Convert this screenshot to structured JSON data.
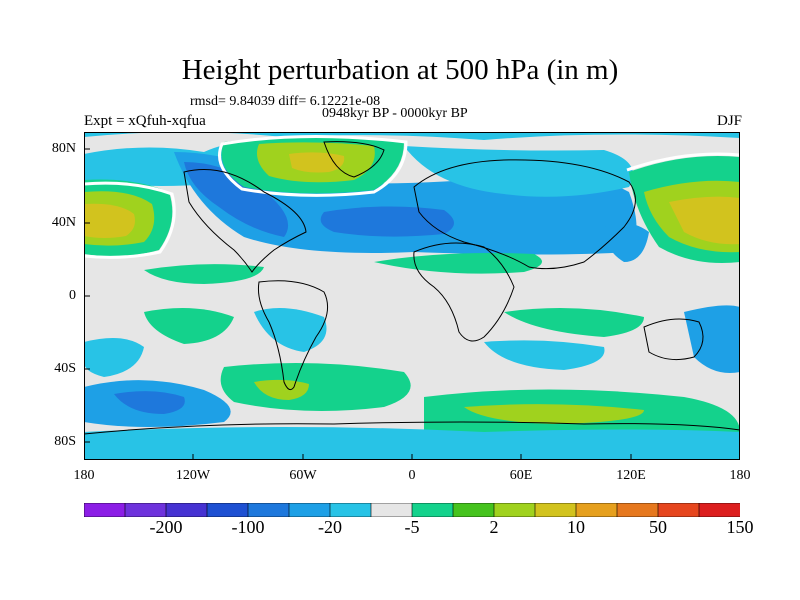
{
  "title": "Height perturbation at 500 hPa (in m)",
  "subtitle_stats": "rmsd= 9.84039 diff= 6.12221e-08",
  "subtitle_period": "0948kyr BP - 0000kyr BP",
  "left_label": "Expt = xQfuh-xqfua",
  "right_label": "DJF",
  "lat_labels": [
    "80N",
    "40N",
    "0",
    "40S",
    "80S"
  ],
  "lon_labels": [
    "180",
    "120W",
    "60W",
    "0",
    "60E",
    "120E",
    "180"
  ],
  "colorbar": {
    "colors": [
      "#8c1ee6",
      "#6e32dc",
      "#4632d2",
      "#1e50d2",
      "#1e78dc",
      "#1ea0e6",
      "#28c3e6",
      "#e6e6e6",
      "#14d28c",
      "#46c31e",
      "#a0d21e",
      "#d2c31e",
      "#e6a01e",
      "#e6781e",
      "#e6461e",
      "#dc1e1e"
    ],
    "labels": [
      "-200",
      "-100",
      "-20",
      "-5",
      "2",
      "10",
      "50",
      "150"
    ]
  },
  "map": {
    "background_color": "#e6e6e6",
    "coast_color": "#000000",
    "contour_color": "#ffffff"
  }
}
